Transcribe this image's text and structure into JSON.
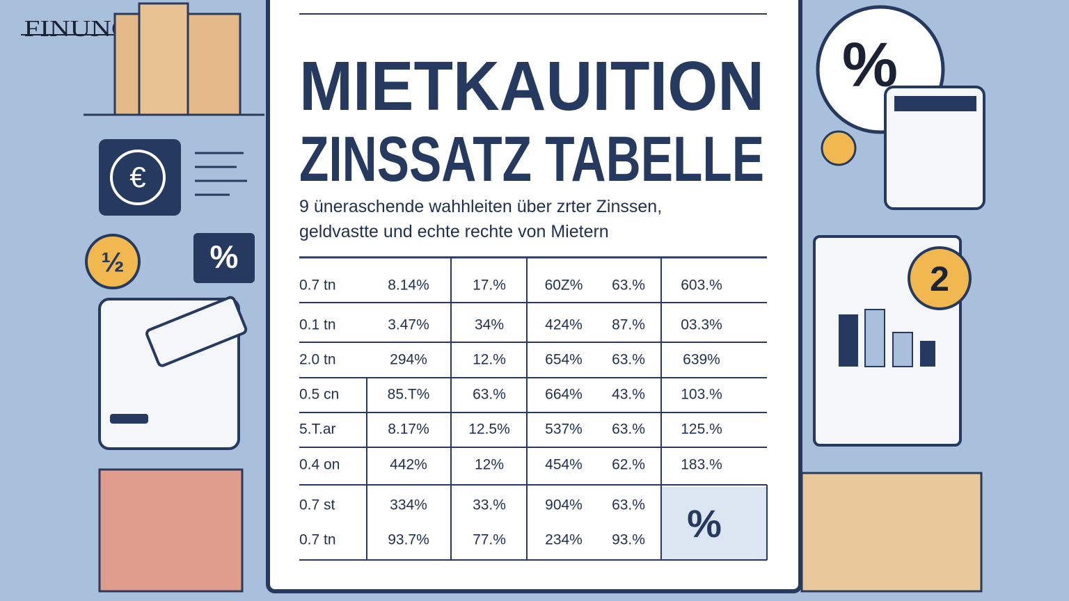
{
  "logo": "FINUNO",
  "title": [
    "MIETKAUITION",
    "ZINSSATZ TABELLE"
  ],
  "subtitle": [
    "9 üneraschende wahhleiten über zrter Zinssen,",
    "geldvastte und echte rechte von Mietern"
  ],
  "table": {
    "rows": [
      [
        "0.7 tn",
        "8.14%",
        "17.%",
        "60Z%",
        "63.%",
        "603.%"
      ],
      [
        "0.1 tn",
        "3.47%",
        "34%",
        "424%",
        "87.%",
        "03.3%"
      ],
      [
        "2.0 tn",
        "294%",
        "12.%",
        "654%",
        "63.%",
        "639%"
      ],
      [
        "0.5 cn",
        "85.T%",
        "63.%",
        "664%",
        "43.%",
        "103.%"
      ],
      [
        "5.T.ar",
        "8.17%",
        "12.5%",
        "537%",
        "63.%",
        "125.%"
      ],
      [
        "0.4 on",
        "442%",
        "12%",
        "454%",
        "62.%",
        "183.%"
      ],
      [
        "0.7 st",
        "334%",
        "33.%",
        "904%",
        "63.%"
      ],
      [
        "0.7 tn",
        "93.7%",
        "77.%",
        "234%",
        "93.%"
      ]
    ],
    "highlight_cell": "%"
  },
  "icons": {
    "euro": "€",
    "percent_box": "%",
    "key_coin": "½",
    "percent_bubble": "%",
    "number_coin": "2"
  }
}
